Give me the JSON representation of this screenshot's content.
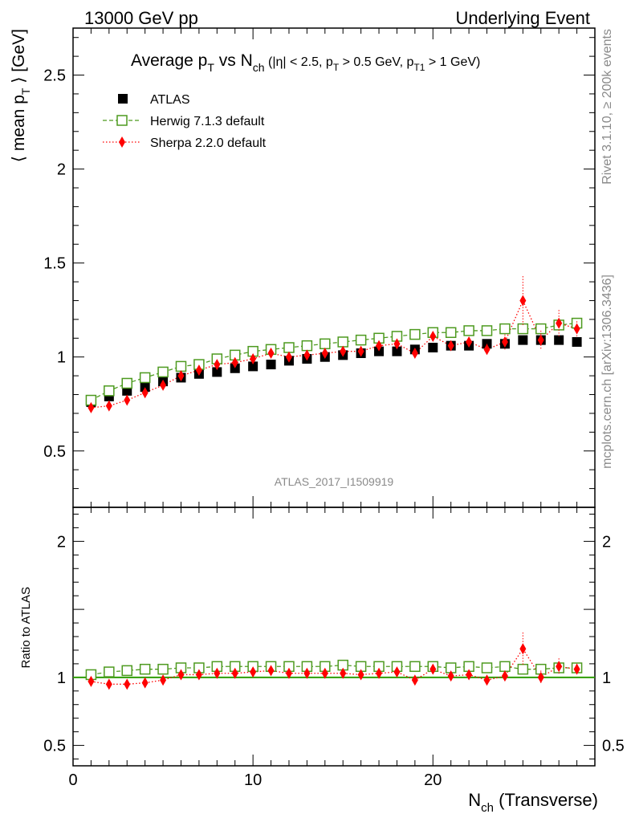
{
  "header": {
    "left": "13000 GeV pp",
    "right": "Underlying Event"
  },
  "title": {
    "main": "Average p",
    "main_sub": "T",
    "mid": " vs N",
    "mid_sub": "ch",
    "cuts_a": " (|η| < 2.5, p",
    "cuts_a_sub": "T",
    "cuts_b": " > 0.5 GeV, p",
    "cuts_b_sub": "T1",
    "cuts_c": " > 1 GeV)"
  },
  "side_labels": {
    "rivet": "Rivet 3.1.10, ≥ 200k events",
    "mcplots": "mcplots.cern.ch [arXiv:1306.3436]"
  },
  "analysis_id": "ATLAS_2017_I1509919",
  "axes": {
    "ylabel_main_pre": "⟨ mean p",
    "ylabel_main_sub": "T",
    "ylabel_main_post": " ⟩ [GeV]",
    "ylabel_ratio": "Ratio to ATLAS",
    "xlabel_pre": "N",
    "xlabel_sub": "ch",
    "xlabel_post": " (Transverse)"
  },
  "legend": [
    {
      "label": "ATLAS",
      "marker": "filled-square"
    },
    {
      "label": "Herwig 7.1.3 default",
      "marker": "open-square-dashed"
    },
    {
      "label": "Sherpa 2.2.0 default",
      "marker": "diamond-dotted"
    }
  ],
  "colors": {
    "atlas": "#000000",
    "herwig": "#4d9a1f",
    "sherpa": "#ff0000",
    "ratio_line": "#2e9e00"
  },
  "chart_data": {
    "type": "scatter",
    "main_panel": {
      "xlim": [
        0,
        29
      ],
      "ylim": [
        0.2,
        2.75
      ],
      "yticks": [
        0.5,
        1,
        1.5,
        2,
        2.5
      ],
      "ytick_labels": [
        "0.5",
        "1",
        "1.5",
        "2",
        "2.5"
      ]
    },
    "ratio_panel": {
      "xlim": [
        0,
        29
      ],
      "ylim": [
        0.35,
        2.25
      ],
      "yticks": [
        0.5,
        1,
        2
      ],
      "ytick_labels": [
        "0.5",
        "1",
        "2"
      ]
    },
    "xticks": [
      0,
      10,
      20
    ],
    "xtick_labels": [
      "0",
      "10",
      "20"
    ],
    "x": [
      1,
      2,
      3,
      4,
      5,
      6,
      7,
      8,
      9,
      10,
      11,
      12,
      13,
      14,
      15,
      16,
      17,
      18,
      19,
      20,
      21,
      22,
      23,
      24,
      25,
      26,
      27,
      28
    ],
    "series": [
      {
        "name": "ATLAS",
        "values": [
          0.76,
          0.79,
          0.82,
          0.84,
          0.87,
          0.89,
          0.91,
          0.92,
          0.94,
          0.95,
          0.96,
          0.98,
          0.99,
          1.0,
          1.01,
          1.02,
          1.03,
          1.03,
          1.04,
          1.05,
          1.06,
          1.06,
          1.07,
          1.07,
          1.09,
          1.09,
          1.09,
          1.08
        ]
      },
      {
        "name": "Herwig 7.1.3 default",
        "values": [
          0.77,
          0.82,
          0.86,
          0.89,
          0.92,
          0.95,
          0.96,
          0.99,
          1.01,
          1.03,
          1.04,
          1.05,
          1.06,
          1.07,
          1.08,
          1.09,
          1.1,
          1.11,
          1.12,
          1.13,
          1.13,
          1.14,
          1.14,
          1.15,
          1.15,
          1.15,
          1.17,
          1.18
        ],
        "ratio": [
          1.02,
          1.04,
          1.05,
          1.06,
          1.06,
          1.07,
          1.07,
          1.08,
          1.08,
          1.08,
          1.08,
          1.08,
          1.08,
          1.08,
          1.09,
          1.08,
          1.08,
          1.08,
          1.08,
          1.08,
          1.07,
          1.08,
          1.07,
          1.08,
          1.06,
          1.06,
          1.07,
          1.07
        ]
      },
      {
        "name": "Sherpa 2.2.0 default",
        "values": [
          0.73,
          0.74,
          0.77,
          0.81,
          0.85,
          0.9,
          0.93,
          0.96,
          0.97,
          0.99,
          1.02,
          1.0,
          1.01,
          1.02,
          1.03,
          1.03,
          1.06,
          1.07,
          1.02,
          1.11,
          1.06,
          1.08,
          1.04,
          1.08,
          1.3,
          1.09,
          1.18,
          1.15
        ],
        "errors": [
          0.01,
          0.01,
          0.01,
          0.01,
          0.01,
          0.01,
          0.01,
          0.01,
          0.01,
          0.01,
          0.01,
          0.01,
          0.01,
          0.01,
          0.01,
          0.01,
          0.02,
          0.02,
          0.02,
          0.02,
          0.02,
          0.02,
          0.03,
          0.04,
          0.13,
          0.05,
          0.07,
          0.04
        ],
        "ratio": [
          0.97,
          0.95,
          0.95,
          0.96,
          0.98,
          1.02,
          1.02,
          1.03,
          1.03,
          1.04,
          1.05,
          1.03,
          1.03,
          1.03,
          1.03,
          1.02,
          1.03,
          1.04,
          0.98,
          1.06,
          1.01,
          1.02,
          0.98,
          1.01,
          1.21,
          1.0,
          1.08,
          1.06
        ],
        "ratio_errors": [
          0.01,
          0.01,
          0.01,
          0.01,
          0.01,
          0.01,
          0.01,
          0.01,
          0.01,
          0.01,
          0.01,
          0.01,
          0.01,
          0.01,
          0.01,
          0.01,
          0.02,
          0.02,
          0.02,
          0.02,
          0.02,
          0.02,
          0.03,
          0.04,
          0.12,
          0.05,
          0.06,
          0.04
        ]
      }
    ]
  }
}
